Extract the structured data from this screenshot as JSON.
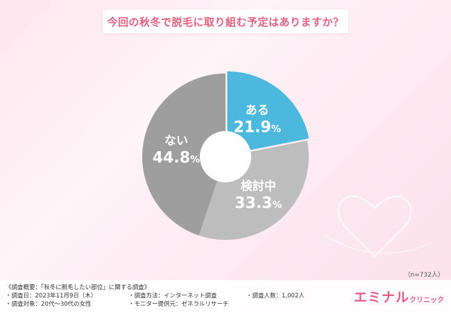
{
  "title": "今回の秋冬で脱毛に取り組む予定はありますか？",
  "n_label": "（n=732人）",
  "chart_data": {
    "type": "pie",
    "donut": true,
    "categories": [
      "ある",
      "検討中",
      "ない"
    ],
    "values": [
      21.9,
      33.3,
      44.8
    ],
    "pct_labels": [
      {
        "big": "21.9",
        "small": "%"
      },
      {
        "big": "33.3",
        "small": "%"
      },
      {
        "big": "44.8",
        "small": "%"
      }
    ],
    "colors": [
      "#4cb8dd",
      "#bdbdbd",
      "#9e9e9e"
    ],
    "highlight": "ある"
  },
  "footer": {
    "survey_title": "《調査概要：「秋冬に脱毛したい部位」に関する調査》",
    "items": [
      "調査日：2023年11月9日（木）",
      "調査方法：インターネット調査",
      "調査人数：1,002人",
      "調査対象：20代～30代の女性",
      "モニター提供元：ゼネラルリサーチ"
    ],
    "logo_main": "エミナル",
    "logo_sub": "クリニック"
  },
  "decor": {
    "heart_color": "#ffffff"
  }
}
